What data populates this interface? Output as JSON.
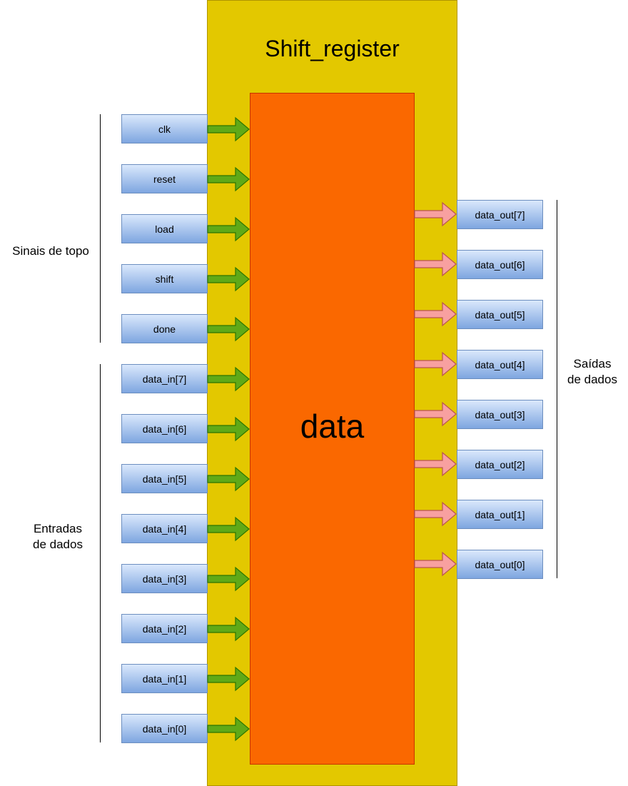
{
  "diagram": {
    "title": "Shift_register",
    "inner_block": "data",
    "groups": {
      "top_signals": [
        "Sinais de topo"
      ],
      "data_inputs": [
        "Entradas",
        "de dados"
      ],
      "data_outputs": [
        "Saídas",
        "de dados"
      ]
    },
    "control_signals": [
      "clk",
      "reset",
      "load",
      "shift",
      "done"
    ],
    "data_inputs": [
      "data_in[7]",
      "data_in[6]",
      "data_in[5]",
      "data_in[4]",
      "data_in[3]",
      "data_in[2]",
      "data_in[1]",
      "data_in[0]"
    ],
    "data_outputs": [
      "data_out[7]",
      "data_out[6]",
      "data_out[5]",
      "data_out[4]",
      "data_out[3]",
      "data_out[2]",
      "data_out[1]",
      "data_out[0]"
    ],
    "colors": {
      "outer_block": "#e3c800",
      "inner_block": "#fa6800",
      "input_arrow": "#60a917",
      "output_arrow": "#f8a0a0",
      "signal_box": "#dae8fc"
    }
  }
}
